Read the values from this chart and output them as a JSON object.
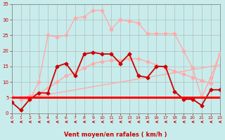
{
  "xlabel": "Vent moyen/en rafales ( km/h )",
  "background_color": "#c8ecec",
  "grid_color": "#b0b0b0",
  "x_range": [
    0,
    23
  ],
  "y_range": [
    0,
    35
  ],
  "yticks": [
    0,
    5,
    10,
    15,
    20,
    25,
    30,
    35
  ],
  "xticks": [
    0,
    1,
    2,
    3,
    4,
    5,
    6,
    7,
    8,
    9,
    10,
    11,
    12,
    13,
    14,
    15,
    16,
    17,
    18,
    19,
    20,
    21,
    22,
    23
  ],
  "series": [
    {
      "x": [
        0,
        1,
        2,
        3,
        4,
        5,
        6,
        7,
        8,
        9,
        10,
        11,
        12,
        13,
        14,
        15,
        16,
        17,
        18,
        19,
        20,
        21,
        22,
        23
      ],
      "y": [
        5.0,
        5.0,
        5.0,
        5.0,
        5.0,
        5.0,
        5.0,
        5.0,
        5.0,
        5.0,
        5.0,
        5.0,
        5.0,
        5.0,
        5.0,
        5.0,
        5.0,
        5.0,
        5.0,
        5.0,
        5.0,
        5.0,
        5.0,
        5.0
      ],
      "color": "#ff0000",
      "lw": 2.2,
      "marker": null,
      "zorder": 5
    },
    {
      "x": [
        0,
        1,
        2,
        3,
        4,
        5,
        6,
        7,
        8,
        9,
        10,
        11,
        12,
        13,
        14,
        15,
        16,
        17,
        18,
        19,
        20,
        21,
        22,
        23
      ],
      "y": [
        5.0,
        5.0,
        5.0,
        5.5,
        6.0,
        6.5,
        7.0,
        7.5,
        8.0,
        8.5,
        9.0,
        9.5,
        10.0,
        10.5,
        11.0,
        11.5,
        12.0,
        12.5,
        13.0,
        13.5,
        14.0,
        14.5,
        15.0,
        15.5
      ],
      "color": "#ffaaaa",
      "lw": 1.0,
      "marker": null,
      "zorder": 2
    },
    {
      "x": [
        0,
        1,
        2,
        3,
        4,
        5,
        6,
        7,
        8,
        9,
        10,
        11,
        12,
        13,
        14,
        15,
        16,
        17,
        18,
        19,
        20,
        21,
        22,
        23
      ],
      "y": [
        5.5,
        4.5,
        4.5,
        10.0,
        25.0,
        24.5,
        25.0,
        30.5,
        31.0,
        33.0,
        33.0,
        27.0,
        30.0,
        29.5,
        29.0,
        25.5,
        25.5,
        25.5,
        25.5,
        20.0,
        14.5,
        5.0,
        11.5,
        19.0
      ],
      "color": "#ffaaaa",
      "lw": 1.0,
      "marker": "D",
      "markersize": 2.5,
      "zorder": 3
    },
    {
      "x": [
        0,
        1,
        2,
        3,
        4,
        5,
        6,
        7,
        8,
        9,
        10,
        11,
        12,
        13,
        14,
        15,
        16,
        17,
        18,
        19,
        20,
        21,
        22,
        23
      ],
      "y": [
        5.0,
        5.0,
        5.5,
        6.5,
        8.0,
        10.0,
        12.0,
        13.0,
        14.5,
        16.0,
        16.5,
        17.0,
        17.0,
        17.5,
        17.5,
        16.5,
        15.5,
        14.5,
        13.5,
        12.5,
        11.5,
        10.5,
        9.5,
        19.0
      ],
      "color": "#ffaaaa",
      "lw": 1.0,
      "marker": "D",
      "markersize": 2.5,
      "zorder": 3
    },
    {
      "x": [
        0,
        1,
        2,
        3,
        4,
        5,
        6,
        7,
        8,
        9,
        10,
        11,
        12,
        13,
        14,
        15,
        16,
        17,
        18,
        19,
        20,
        21,
        22,
        23
      ],
      "y": [
        3.5,
        1.0,
        4.5,
        6.5,
        6.5,
        15.0,
        16.0,
        12.0,
        19.0,
        19.5,
        19.0,
        19.0,
        16.0,
        19.0,
        12.0,
        11.5,
        15.0,
        15.0,
        7.0,
        4.5,
        4.5,
        2.5,
        7.5,
        7.5
      ],
      "color": "#cc0000",
      "lw": 1.3,
      "marker": "D",
      "markersize": 2.5,
      "zorder": 4
    }
  ],
  "arrow_color": "#cc0000",
  "xlabel_color": "#cc0000",
  "tick_color": "#cc0000"
}
